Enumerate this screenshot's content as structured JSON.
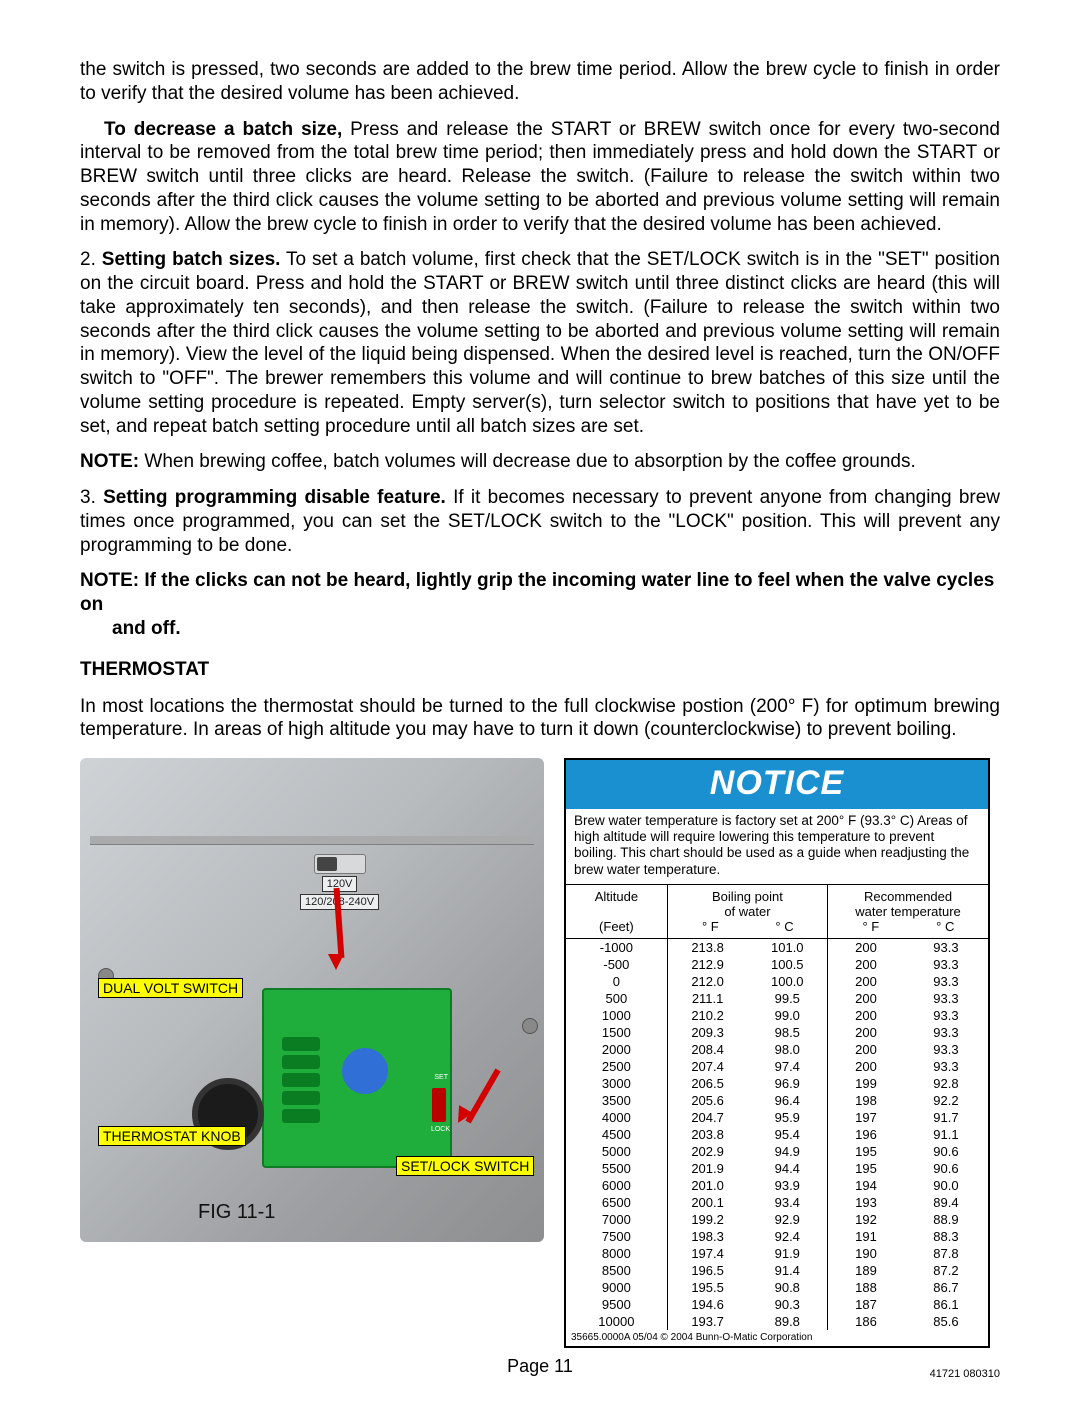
{
  "paragraphs": {
    "p1": "the switch is pressed, two seconds are added to the brew time period.  Allow the brew cycle to finish in order to verify that the desired volume has been achieved.",
    "p2_lead": "To decrease a batch size,",
    "p2_rest": " Press and release the START or BREW switch once for every two-second interval to be removed from the total brew time period; then immediately press and hold down the START or BREW switch until three clicks are heard. Release the switch. (Failure to release the switch within two seconds after the third click causes the volume setting to be aborted and previous volume setting will remain in memory). Allow the brew cycle to finish in order to verify that the desired volume has been achieved.",
    "p3_num": "2.   ",
    "p3_lead": "Setting batch sizes.",
    "p3_rest": " To set a batch volume, first check that the SET/LOCK switch is in the \"SET\" position on the circuit board. Press and hold the START or BREW switch until three distinct clicks are heard (this will take approximately ten seconds), and then release the switch. (Failure to release the switch within two seconds after the third click causes the volume setting to be aborted and previous volume setting will remain in memory). View the level of the liquid being dispensed. When the desired level is reached, turn the ON/OFF switch to \"OFF\". The brewer remembers this volume and will continue to brew batches of this size until the volume setting procedure is repeated. Empty server(s), turn selector switch to positions that have yet to be set, and repeat batch setting procedure until all batch sizes are set.",
    "p4_lead": "NOTE:",
    "p4_rest": " When brewing coffee, batch volumes will decrease due to absorption by the coffee grounds.",
    "p5_num": "3.   ",
    "p5_lead": "Setting programming disable feature.",
    "p5_rest": " If it becomes necessary to prevent anyone from changing brew times once programmed, you can set the SET/LOCK switch to the \"LOCK\" position. This will prevent any programming to be done.",
    "note1": "NOTE: If the clicks can not be heard, lightly grip  the incoming water line to feel when the valve cycles on",
    "note2": "and off.",
    "thermostat_head": "THERMOSTAT",
    "p_therm": "In most locations the thermostat should be turned to the full clockwise postion (200° F) for optimum brewing temperature. In areas of high altitude you may have to turn it down (counterclockwise) to prevent boiling."
  },
  "figure": {
    "label_dual_volt": "DUAL VOLT SWITCH",
    "label_thermo_knob": "THERMOSTAT KNOB",
    "label_setlock": "SET/LOCK SWITCH",
    "volt_a": "120V",
    "volt_b": "120/208-240V",
    "caption": "FIG 11-1",
    "set": "SET",
    "lock": "LOCK"
  },
  "notice": {
    "title": "NOTICE",
    "text": "Brew water temperature is factory set at 200° F (93.3° C) Areas of high altitude will require lowering this temperature to prevent boiling.  This chart should be used as a guide when readjusting the brew water temperature.",
    "col_alt1": "Altitude",
    "col_alt2": "(Feet)",
    "col_bp1": "Boiling point",
    "col_bp2": "of water",
    "col_rec1": "Recommended",
    "col_rec2": "water temperature",
    "degF": "° F",
    "degC": "° C",
    "rows": [
      [
        "-1000",
        "213.8",
        "101.0",
        "200",
        "93.3"
      ],
      [
        "-500",
        "212.9",
        "100.5",
        "200",
        "93.3"
      ],
      [
        "0",
        "212.0",
        "100.0",
        "200",
        "93.3"
      ],
      [
        "500",
        "211.1",
        "99.5",
        "200",
        "93.3"
      ],
      [
        "1000",
        "210.2",
        "99.0",
        "200",
        "93.3"
      ],
      [
        "1500",
        "209.3",
        "98.5",
        "200",
        "93.3"
      ],
      [
        "2000",
        "208.4",
        "98.0",
        "200",
        "93.3"
      ],
      [
        "2500",
        "207.4",
        "97.4",
        "200",
        "93.3"
      ],
      [
        "3000",
        "206.5",
        "96.9",
        "199",
        "92.8"
      ],
      [
        "3500",
        "205.6",
        "96.4",
        "198",
        "92.2"
      ],
      [
        "4000",
        "204.7",
        "95.9",
        "197",
        "91.7"
      ],
      [
        "4500",
        "203.8",
        "95.4",
        "196",
        "91.1"
      ],
      [
        "5000",
        "202.9",
        "94.9",
        "195",
        "90.6"
      ],
      [
        "5500",
        "201.9",
        "94.4",
        "195",
        "90.6"
      ],
      [
        "6000",
        "201.0",
        "93.9",
        "194",
        "90.0"
      ],
      [
        "6500",
        "200.1",
        "93.4",
        "193",
        "89.4"
      ],
      [
        "7000",
        "199.2",
        "92.9",
        "192",
        "88.9"
      ],
      [
        "7500",
        "198.3",
        "92.4",
        "191",
        "88.3"
      ],
      [
        "8000",
        "197.4",
        "91.9",
        "190",
        "87.8"
      ],
      [
        "8500",
        "196.5",
        "91.4",
        "189",
        "87.2"
      ],
      [
        "9000",
        "195.5",
        "90.8",
        "188",
        "86.7"
      ],
      [
        "9500",
        "194.6",
        "90.3",
        "187",
        "86.1"
      ],
      [
        "10000",
        "193.7",
        "89.8",
        "186",
        "85.6"
      ]
    ],
    "foot": "35665.0000A 05/04  © 2004  Bunn-O-Matic Corporation"
  },
  "footer": {
    "page": "Page 11",
    "docid": "41721 080310"
  },
  "colors": {
    "notice_bg": "#1b90d0",
    "label_bg": "#ffff00",
    "arrow": "#d40000",
    "pcb": "#1fae3c"
  }
}
